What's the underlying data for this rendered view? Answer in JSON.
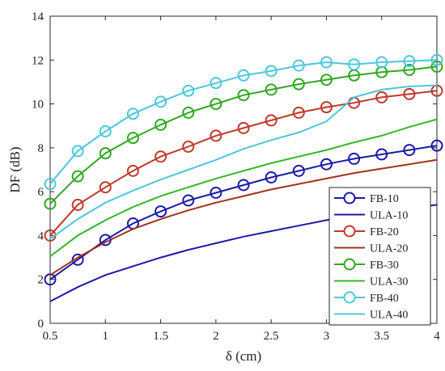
{
  "chart_data": {
    "type": "line",
    "title": "",
    "xlabel": "δ (cm)",
    "ylabel": "DF (dB)",
    "xlim": [
      0.5,
      4
    ],
    "ylim": [
      0,
      14
    ],
    "xticks": [
      0.5,
      1,
      1.5,
      2,
      2.5,
      3,
      3.5,
      4
    ],
    "xtick_labels": [
      "0.5",
      "1",
      "1.5",
      "2",
      "2.5",
      "3",
      "3.5",
      "4"
    ],
    "yticks": [
      0,
      2,
      4,
      6,
      8,
      10,
      12,
      14
    ],
    "ytick_labels": [
      "0",
      "2",
      "4",
      "6",
      "8",
      "10",
      "12",
      "14"
    ],
    "grid": false,
    "legend_position": "bottom-right",
    "x": [
      0.5,
      0.75,
      1.0,
      1.25,
      1.5,
      1.75,
      2.0,
      2.25,
      2.5,
      2.75,
      3.0,
      3.25,
      3.5,
      3.75,
      4.0
    ],
    "series": [
      {
        "name": "FB-10",
        "color": "#1a1aa8",
        "marker": "circle",
        "values": [
          2.0,
          2.9,
          3.8,
          4.55,
          5.1,
          5.6,
          5.95,
          6.3,
          6.65,
          6.95,
          7.25,
          7.5,
          7.7,
          7.9,
          8.1
        ]
      },
      {
        "name": "ULA-10",
        "color": "#1a1aa8",
        "marker": "none",
        "values": [
          1.0,
          1.65,
          2.2,
          2.6,
          3.0,
          3.35,
          3.65,
          3.95,
          4.2,
          4.45,
          4.7,
          4.9,
          5.1,
          5.25,
          5.4
        ]
      },
      {
        "name": "FB-20",
        "color": "#c0392b",
        "marker": "circle",
        "values": [
          4.0,
          5.4,
          6.2,
          6.95,
          7.6,
          8.05,
          8.55,
          8.9,
          9.25,
          9.6,
          9.85,
          10.05,
          10.3,
          10.45,
          10.6
        ]
      },
      {
        "name": "ULA-20",
        "color": "#a0341a",
        "marker": "none",
        "values": [
          2.2,
          3.0,
          3.7,
          4.3,
          4.75,
          5.15,
          5.5,
          5.8,
          6.1,
          6.35,
          6.6,
          6.85,
          7.05,
          7.25,
          7.45
        ]
      },
      {
        "name": "FB-30",
        "color": "#2fa81f",
        "marker": "circle",
        "values": [
          5.45,
          6.7,
          7.75,
          8.45,
          9.05,
          9.6,
          10.0,
          10.4,
          10.65,
          10.9,
          11.1,
          11.3,
          11.45,
          11.55,
          11.7
        ]
      },
      {
        "name": "ULA-30",
        "color": "#35b829",
        "marker": "none",
        "values": [
          3.05,
          4.0,
          4.7,
          5.3,
          5.8,
          6.2,
          6.6,
          6.95,
          7.3,
          7.6,
          7.9,
          8.25,
          8.55,
          8.95,
          9.3
        ]
      },
      {
        "name": "FB-40",
        "color": "#4cc7dc",
        "marker": "circle",
        "values": [
          6.35,
          7.85,
          8.75,
          9.55,
          10.1,
          10.6,
          10.95,
          11.3,
          11.5,
          11.75,
          11.9,
          11.8,
          11.9,
          11.95,
          12.0
        ]
      },
      {
        "name": "ULA-40",
        "color": "#4cc7dc",
        "marker": "none",
        "values": [
          3.85,
          4.75,
          5.5,
          6.05,
          6.55,
          7.0,
          7.45,
          7.95,
          8.35,
          8.7,
          9.2,
          10.3,
          10.65,
          10.8,
          10.85
        ]
      }
    ]
  }
}
